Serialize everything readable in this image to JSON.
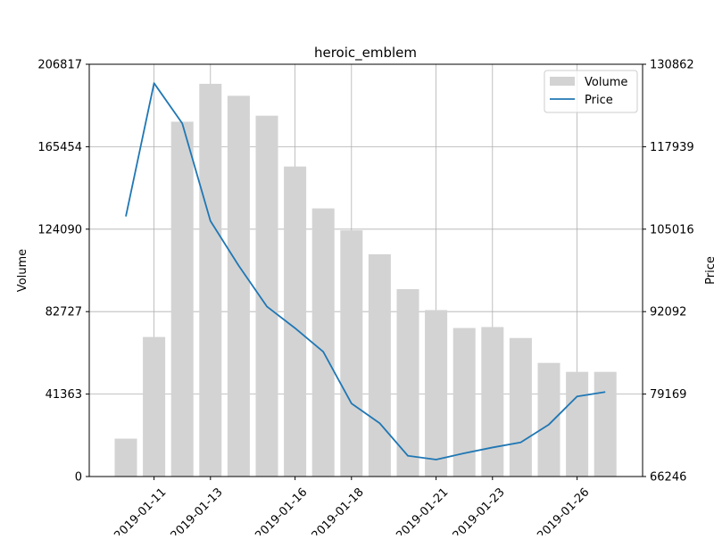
{
  "chart_data": {
    "type": "bar+line",
    "title": "heroic_emblem",
    "xlabel": "",
    "ylabel_left": "Volume",
    "ylabel_right": "Price",
    "y_left_ticks": [
      "0",
      "41363",
      "82727",
      "124090",
      "165454",
      "206817"
    ],
    "y_right_ticks": [
      "66246",
      "79169",
      "92092",
      "105016",
      "117939",
      "130862"
    ],
    "x_ticks": [
      "2019-01-11",
      "2019-01-13",
      "2019-01-16",
      "2019-01-18",
      "2019-01-21",
      "2019-01-23",
      "2019-01-26"
    ],
    "ylim_left": [
      0,
      206817
    ],
    "ylim_right": [
      66246,
      130862
    ],
    "grid": true,
    "legend_position": "top-right",
    "legend": [
      "Volume",
      "Price"
    ],
    "colors": {
      "volume": "#d3d3d3",
      "price": "#1f77b4",
      "grid": "#b0b0b0"
    },
    "dates": [
      "2019-01-10",
      "2019-01-11",
      "2019-01-12",
      "2019-01-13",
      "2019-01-14",
      "2019-01-15",
      "2019-01-16",
      "2019-01-17",
      "2019-01-18",
      "2019-01-19",
      "2019-01-20",
      "2019-01-21",
      "2019-01-22",
      "2019-01-23",
      "2019-01-24",
      "2019-01-25",
      "2019-01-26",
      "2019-01-27"
    ],
    "series": [
      {
        "name": "Volume",
        "kind": "bar",
        "values": [
          19000,
          70000,
          178000,
          197000,
          191000,
          181000,
          155500,
          134500,
          123500,
          111500,
          94000,
          83500,
          74500,
          75000,
          69500,
          57000,
          52500,
          52500
        ]
      },
      {
        "name": "Price",
        "kind": "line",
        "values": [
          107000,
          127900,
          121600,
          106300,
          99300,
          92900,
          89500,
          85800,
          77700,
          74600,
          69500,
          68900,
          69900,
          70800,
          71600,
          74400,
          78800,
          79500
        ]
      }
    ]
  }
}
